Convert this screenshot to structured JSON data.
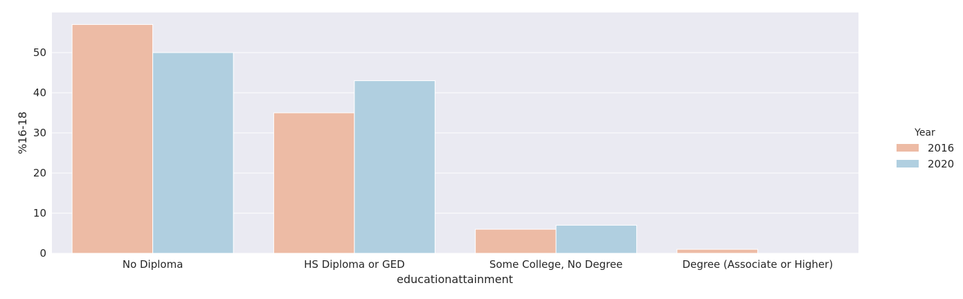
{
  "chart_data": {
    "type": "bar",
    "categories": [
      "No Diploma",
      "HS Diploma or GED",
      "Some College, No Degree",
      "Degree (Associate or Higher)"
    ],
    "series": [
      {
        "name": "2016",
        "values": [
          57,
          35,
          6,
          1
        ],
        "color": "#EDBBA5"
      },
      {
        "name": "2020",
        "values": [
          50,
          43,
          7,
          0
        ],
        "color": "#B0CFE0"
      }
    ],
    "xlabel": "educationattainment",
    "ylabel": "%16-18",
    "ylim": [
      0,
      60
    ],
    "yticks": [
      0,
      10,
      20,
      30,
      40,
      50
    ],
    "legend_title": "Year",
    "legend_position": "right",
    "grid": true,
    "background": "#EAEAF2"
  }
}
